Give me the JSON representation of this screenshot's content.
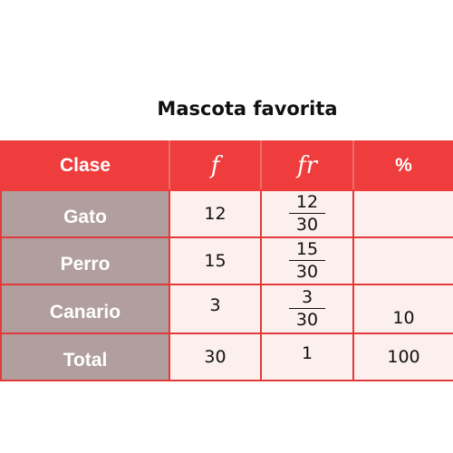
{
  "title": "Mascota favorita",
  "headers": [
    "Clase",
    "f",
    "fr",
    "%"
  ],
  "rows": [
    {
      "clase": "Gato",
      "f": "12",
      "fr_num": "12",
      "fr_den": "30",
      "pct": ""
    },
    {
      "clase": "Perro",
      "f": "15",
      "fr_num": "15",
      "fr_den": "30",
      "pct": ""
    },
    {
      "clase": "Canario",
      "f": "3",
      "fr_num": "3",
      "fr_den": "30",
      "pct": "10"
    }
  ],
  "total": {
    "clase": "Total",
    "f": "30",
    "fr": "1",
    "pct": "100"
  },
  "colors": {
    "header": "#ef3c3c",
    "label_cell": "#b19e9e",
    "value_cell": "#fcf0ee",
    "border": "#e23a3a"
  }
}
